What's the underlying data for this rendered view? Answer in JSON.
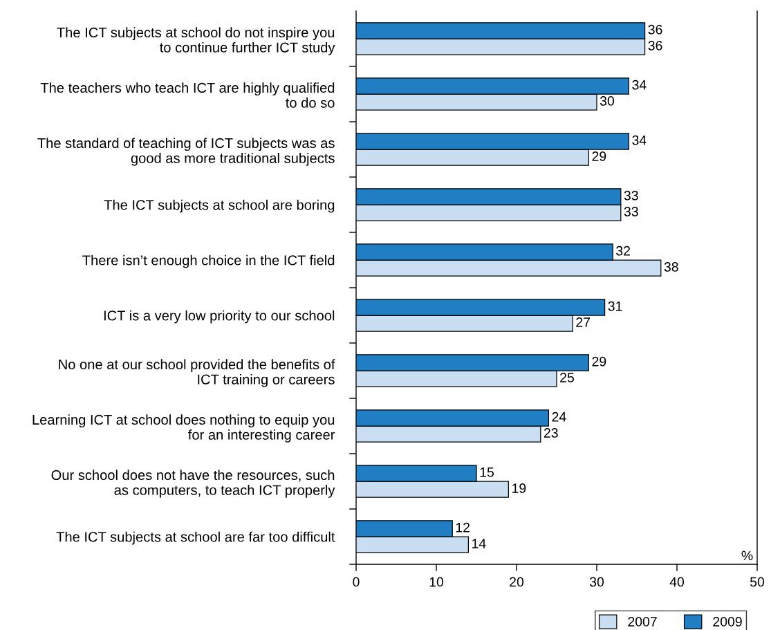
{
  "chart_data": {
    "type": "bar",
    "orientation": "horizontal",
    "categories": [
      "The ICT subjects at school do not inspire you\nto continue further ICT study",
      "The teachers who teach ICT are highly qualified\nto do so",
      "The standard of teaching of ICT subjects was as\ngood as more traditional subjects",
      "The ICT subjects at school are boring",
      "There isn’t enough choice in the ICT field",
      "ICT is a very low priority to our school",
      "No one at our school provided the benefits of\nICT training or careers",
      "Learning ICT at school does nothing to equip you\nfor an interesting career",
      "Our school does not have the resources, such\nas computers, to teach ICT properly",
      "The ICT subjects at school are far too difficult"
    ],
    "series": [
      {
        "name": "2007",
        "color": "#c9dff1",
        "values": [
          36,
          30,
          29,
          33,
          38,
          27,
          25,
          23,
          19,
          14
        ]
      },
      {
        "name": "2009",
        "color": "#1f7fc2",
        "values": [
          36,
          34,
          34,
          33,
          32,
          31,
          29,
          24,
          15,
          12
        ]
      }
    ],
    "xlabel": "%",
    "xlim": [
      0,
      50
    ],
    "xticks": [
      0,
      10,
      20,
      30,
      40,
      50
    ],
    "data_labels": true,
    "legend": "bottom right"
  }
}
